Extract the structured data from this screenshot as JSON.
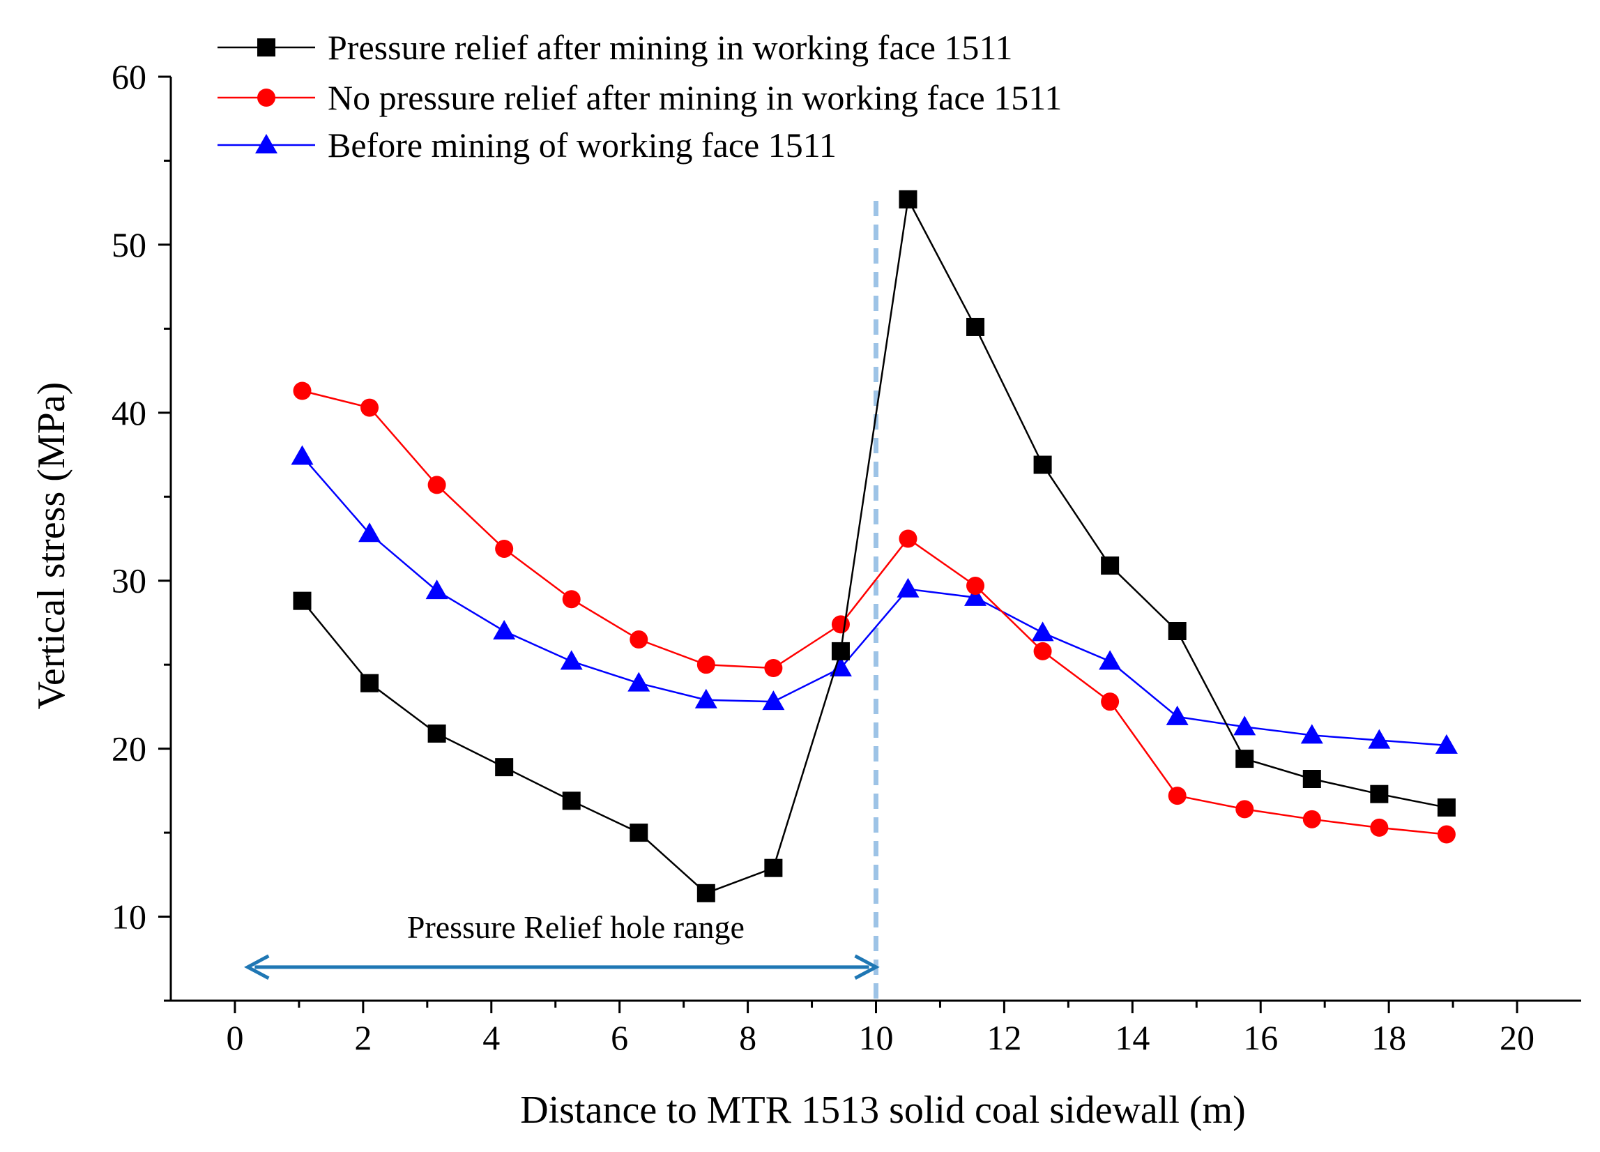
{
  "chart_data": {
    "type": "line",
    "title": "",
    "xlabel": "Distance to MTR 1513 solid coal sidewall (m)",
    "ylabel": "Vertical stress (MPa)",
    "xlim": [
      -1,
      21
    ],
    "ylim": [
      5,
      60
    ],
    "xticks": [
      0,
      2,
      4,
      6,
      8,
      10,
      12,
      14,
      16,
      18,
      20
    ],
    "yticks": [
      10,
      20,
      30,
      40,
      50,
      60
    ],
    "x": [
      1.05,
      2.1,
      3.15,
      4.2,
      5.25,
      6.3,
      7.35,
      8.4,
      9.45,
      10.5,
      11.55,
      12.6,
      13.65,
      14.7,
      15.75,
      16.8,
      17.85,
      18.9
    ],
    "series": [
      {
        "name": "Pressure relief after mining in working face 1511",
        "color": "#000000",
        "marker": "square",
        "values": [
          28.8,
          23.9,
          20.9,
          18.9,
          16.9,
          15.0,
          11.4,
          12.9,
          25.8,
          52.7,
          45.1,
          36.9,
          30.9,
          27.0,
          19.4,
          18.2,
          17.3,
          16.5
        ]
      },
      {
        "name": "No pressure relief after mining in working face 1511",
        "color": "#ff0000",
        "marker": "circle",
        "values": [
          41.3,
          40.3,
          35.7,
          31.9,
          28.9,
          26.5,
          25.0,
          24.8,
          27.4,
          32.5,
          29.7,
          25.8,
          22.8,
          17.2,
          16.4,
          15.8,
          15.3,
          14.9
        ]
      },
      {
        "name": "Before mining of working face 1511",
        "color": "#0000ff",
        "marker": "triangle",
        "values": [
          37.4,
          32.8,
          29.4,
          27.0,
          25.2,
          23.9,
          22.9,
          22.8,
          24.8,
          29.5,
          29.0,
          26.9,
          25.2,
          21.9,
          21.3,
          20.8,
          20.5,
          20.2
        ]
      }
    ],
    "legend_position": "top-left",
    "annotations": [
      {
        "text": "Pressure Relief hole range",
        "arrow_from_x": 0.2,
        "arrow_to_x": 10.0,
        "arrow_y": 7.0,
        "color": "#1f77b4"
      }
    ],
    "reference_line": {
      "x": 10.0,
      "style": "dashed",
      "color": "#9dc3e6"
    }
  }
}
